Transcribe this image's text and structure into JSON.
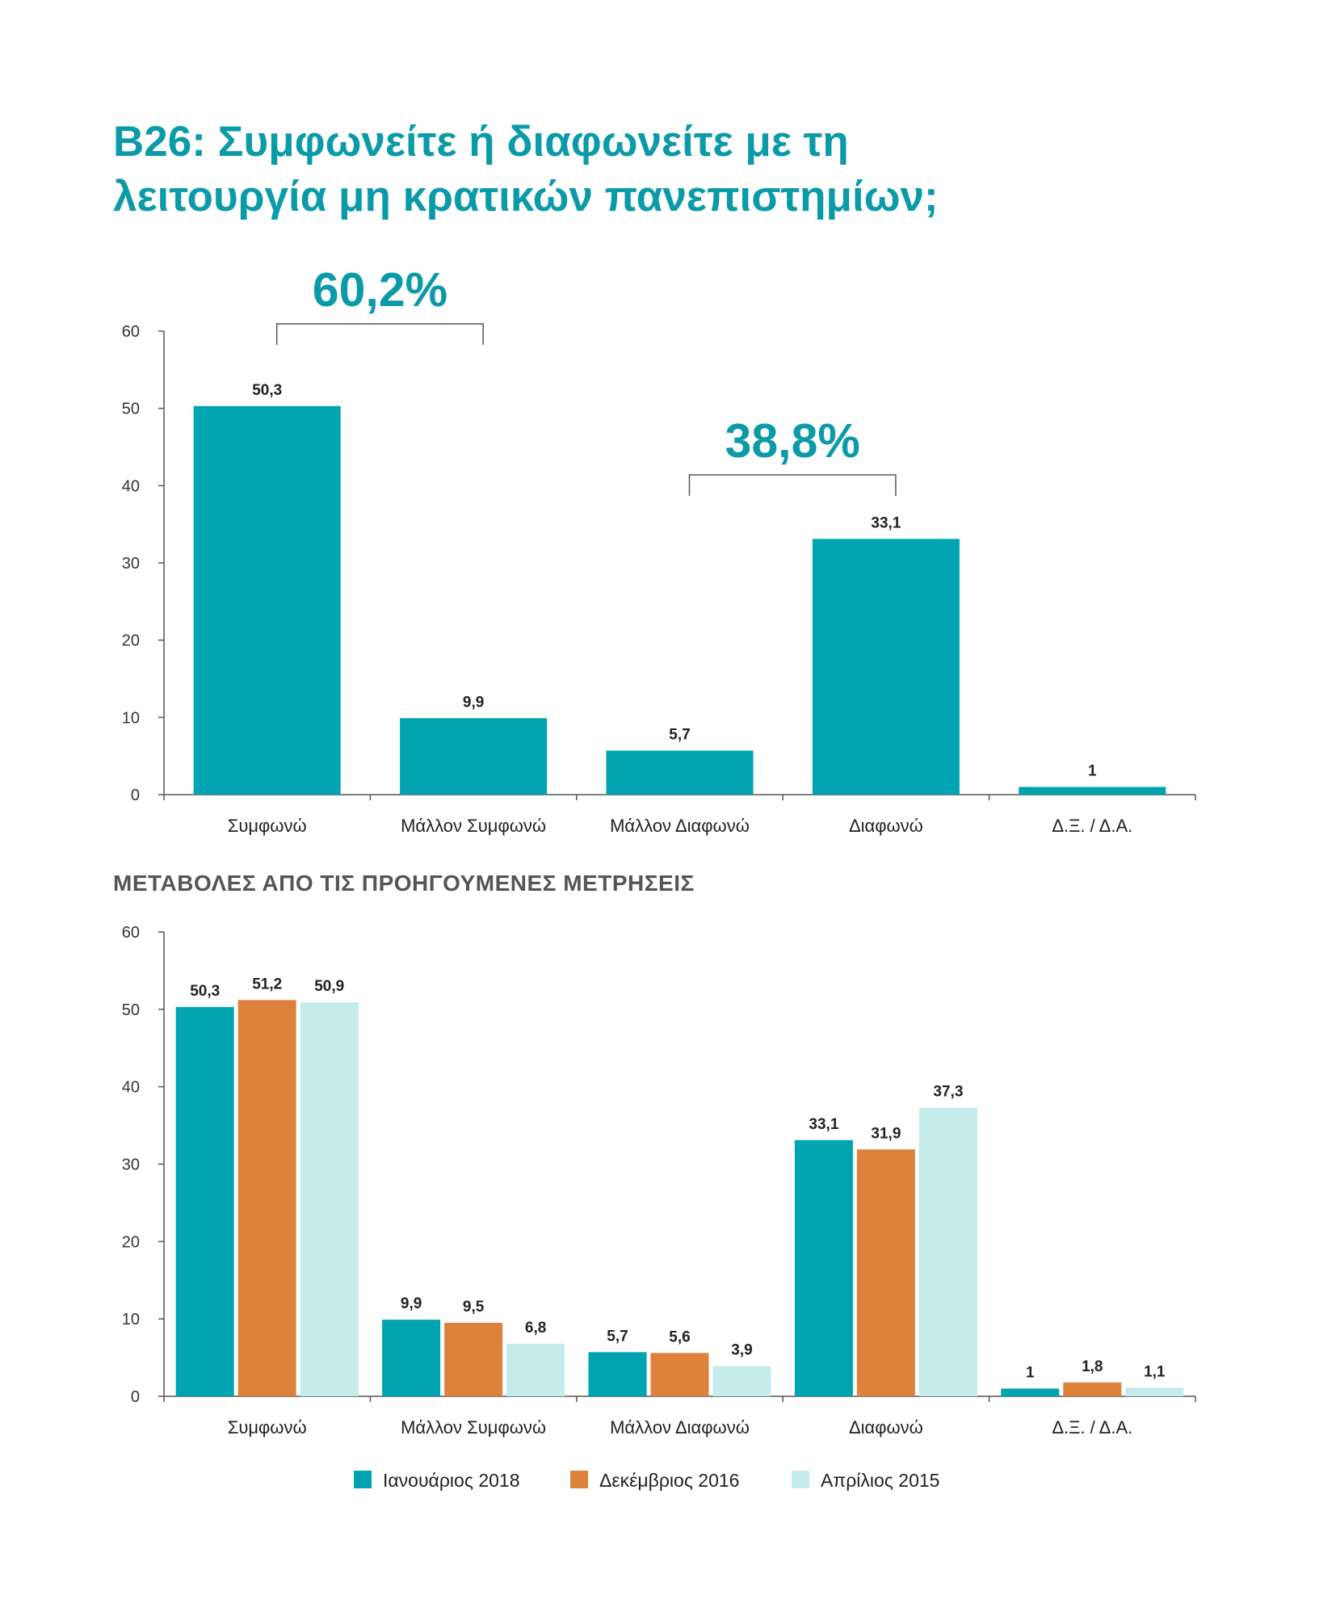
{
  "title_line1": "B26: Συμφωνείτε ή διαφωνείτε με τη",
  "title_line2": "λειτουργία μη κρατικών πανεπιστημίων;",
  "subtitle": "ΜΕΤΑΒΟΛΕΣ ΑΠΟ ΤΙΣ ΠΡΟΗΓΟΥΜΕΝΕΣ ΜΕΤΡΗΣΕΙΣ",
  "colors": {
    "accent": "#0b9ba8",
    "series": [
      "#00a3b0",
      "#dc823c",
      "#c5ebea"
    ]
  },
  "chart_data": [
    {
      "type": "bar",
      "categories": [
        "Συμφωνώ",
        "Μάλλον Συμφωνώ",
        "Μάλλον Διαφωνώ",
        "Διαφωνώ",
        "Δ.Ξ. / Δ.Α."
      ],
      "values": [
        50.3,
        9.9,
        5.7,
        33.1,
        1
      ],
      "value_labels": [
        "50,3",
        "9,9",
        "5,7",
        "33,1",
        "1"
      ],
      "yticks": [
        "0",
        "10",
        "20",
        "30",
        "40",
        "50",
        "60"
      ],
      "ylim": [
        0,
        60
      ],
      "annotations": [
        {
          "text": "60,2%",
          "from_category": 0,
          "to_category": 1
        },
        {
          "text": "38,8%",
          "from_category": 2,
          "to_category": 3
        }
      ]
    },
    {
      "type": "bar",
      "categories": [
        "Συμφωνώ",
        "Μάλλον Συμφωνώ",
        "Μάλλον Διαφωνώ",
        "Διαφωνώ",
        "Δ.Ξ. / Δ.Α."
      ],
      "series": [
        {
          "name": "Ιανουάριος 2018",
          "values": [
            50.3,
            9.9,
            5.7,
            33.1,
            1
          ],
          "labels": [
            "50,3",
            "9,9",
            "5,7",
            "33,1",
            "1"
          ]
        },
        {
          "name": "Δεκέμβριος 2016",
          "values": [
            51.2,
            9.5,
            5.6,
            31.9,
            1.8
          ],
          "labels": [
            "51,2",
            "9,5",
            "5,6",
            "31,9",
            "1,8"
          ]
        },
        {
          "name": "Απρίλιος 2015",
          "values": [
            50.9,
            6.8,
            3.9,
            37.3,
            1.1
          ],
          "labels": [
            "50,9",
            "6,8",
            "3,9",
            "37,3",
            "1,1"
          ]
        }
      ],
      "yticks": [
        "0",
        "10",
        "20",
        "30",
        "40",
        "50",
        "60"
      ],
      "ylim": [
        0,
        60
      ],
      "legend": "bottom"
    }
  ]
}
